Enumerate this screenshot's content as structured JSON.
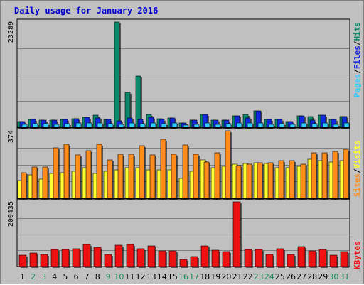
{
  "title": "Daily usage for January 2016",
  "colors": {
    "background": "#c0c0c0",
    "plot_background": "#c0c0c0",
    "grid": "#808080",
    "title": "#0000cc",
    "pages": "#33ccff",
    "files": "#1028e0",
    "hits": "#0b8a6b",
    "sites": "#ff8c1a",
    "visits": "#ffff33",
    "kbytes": "#ee1111",
    "weekday_label": "#000000",
    "weekend_label": "#1a8a5a"
  },
  "legend": {
    "pages": "Pages",
    "files": "Files",
    "hits": "Hits",
    "sites": "Sites",
    "visits": "Visits",
    "kbytes": "KBytes",
    "separator": "/"
  },
  "chart_data": [
    {
      "type": "bar",
      "panel": "hits-files-pages",
      "ymax_label": "23289",
      "ylim": [
        0,
        23289
      ],
      "grid": true,
      "categories": [
        "1",
        "2",
        "3",
        "4",
        "5",
        "6",
        "7",
        "8",
        "9",
        "10",
        "11",
        "12",
        "13",
        "14",
        "15",
        "16",
        "17",
        "18",
        "19",
        "20",
        "21",
        "22",
        "23",
        "24",
        "25",
        "26",
        "27",
        "28",
        "29",
        "30",
        "31"
      ],
      "weekend_days": [
        "2",
        "3",
        "9",
        "10",
        "16",
        "17",
        "23",
        "24",
        "30",
        "31"
      ],
      "series": [
        {
          "name": "Hits",
          "values": [
            1300,
            1800,
            1600,
            1600,
            1700,
            1900,
            2200,
            2600,
            1800,
            23289,
            7700,
            11300,
            2800,
            1900,
            2100,
            1000,
            1600,
            2800,
            1500,
            1600,
            2500,
            2800,
            3600,
            1700,
            1800,
            1200,
            2500,
            2400,
            2600,
            1800,
            2300
          ]
        },
        {
          "name": "Files",
          "values": [
            1300,
            1800,
            1600,
            1600,
            1700,
            1900,
            2200,
            2100,
            1800,
            1400,
            2000,
            1800,
            2200,
            1700,
            2100,
            1000,
            1600,
            2800,
            1500,
            1600,
            2500,
            2000,
            3600,
            1700,
            1800,
            1200,
            2500,
            1600,
            2600,
            1800,
            2300
          ]
        },
        {
          "name": "Pages",
          "values": [
            700,
            800,
            800,
            700,
            800,
            900,
            900,
            900,
            800,
            700,
            1000,
            800,
            900,
            800,
            900,
            500,
            700,
            1000,
            700,
            800,
            900,
            900,
            1000,
            700,
            800,
            600,
            900,
            800,
            900,
            700,
            900
          ]
        }
      ]
    },
    {
      "type": "bar",
      "panel": "visits-sites",
      "ymax_label": "374",
      "ylim": [
        0,
        374
      ],
      "grid": true,
      "categories": [
        "1",
        "2",
        "3",
        "4",
        "5",
        "6",
        "7",
        "8",
        "9",
        "10",
        "11",
        "12",
        "13",
        "14",
        "15",
        "16",
        "17",
        "18",
        "19",
        "20",
        "21",
        "22",
        "23",
        "24",
        "25",
        "26",
        "27",
        "28",
        "29",
        "30",
        "31"
      ],
      "series": [
        {
          "name": "Sites",
          "values": [
            142,
            172,
            172,
            278,
            298,
            240,
            262,
            298,
            212,
            246,
            246,
            292,
            240,
            328,
            246,
            294,
            246,
            200,
            250,
            374,
            182,
            188,
            198,
            198,
            208,
            208,
            188,
            252,
            250,
            258,
            270
          ]
        },
        {
          "name": "Visits",
          "values": [
            98,
            128,
            108,
            138,
            140,
            148,
            168,
            138,
            150,
            158,
            168,
            168,
            158,
            158,
            158,
            112,
            150,
            214,
            170,
            178,
            188,
            192,
            198,
            192,
            168,
            168,
            178,
            218,
            208,
            200,
            208
          ]
        }
      ]
    },
    {
      "type": "bar",
      "panel": "kbytes",
      "ymax_label": "200435",
      "ylim": [
        0,
        200435
      ],
      "grid": true,
      "categories": [
        "1",
        "2",
        "3",
        "4",
        "5",
        "6",
        "7",
        "8",
        "9",
        "10",
        "11",
        "12",
        "13",
        "14",
        "15",
        "16",
        "17",
        "18",
        "19",
        "20",
        "21",
        "22",
        "23",
        "24",
        "25",
        "26",
        "27",
        "28",
        "29",
        "30",
        "31"
      ],
      "series": [
        {
          "name": "KBytes",
          "values": [
            36000,
            42000,
            37000,
            52000,
            52000,
            55000,
            68000,
            60000,
            38000,
            66000,
            68000,
            56000,
            64000,
            48000,
            48000,
            22000,
            30000,
            64000,
            50000,
            46000,
            200435,
            52000,
            52000,
            38000,
            55000,
            38000,
            62000,
            48000,
            52000,
            36000,
            46000
          ]
        }
      ]
    }
  ]
}
